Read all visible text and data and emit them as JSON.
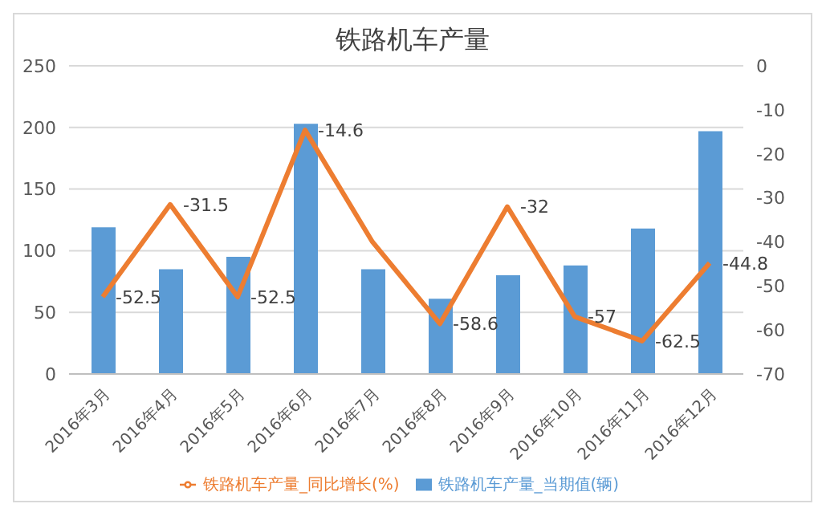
{
  "chart_data": {
    "type": "bar",
    "title": "铁路机车产量",
    "categories": [
      "2016年3月",
      "2016年4月",
      "2016年5月",
      "2016年6月",
      "2016年7月",
      "2016年8月",
      "2016年9月",
      "2016年10月",
      "2016年11月",
      "2016年12月"
    ],
    "series": [
      {
        "name": "铁路机车产量_当期值(辆)",
        "color": "#5b9bd5",
        "values": [
          119,
          85,
          95,
          203,
          85,
          61,
          80,
          88,
          118,
          197
        ]
      },
      {
        "name": "铁路机车产量_同比增长(%)",
        "type": "line",
        "axis": "y2",
        "color": "#ed7d31",
        "values": [
          -52.5,
          -31.5,
          -52.5,
          -14.6,
          -40,
          -58.6,
          -32,
          -57,
          -62.5,
          -44.8
        ],
        "value_labels": [
          "-52.5",
          "-31.5",
          "-52.5",
          "-14.6",
          null,
          "-58.6",
          "-32",
          "-57",
          "-62.5",
          "-44.8"
        ]
      }
    ],
    "ylim": [
      0,
      250
    ],
    "yticks": [
      0,
      50,
      100,
      150,
      200,
      250
    ],
    "y2lim": [
      -70,
      0
    ],
    "y2ticks": [
      -70,
      -60,
      -50,
      -40,
      -30,
      -20,
      -10,
      0
    ],
    "grid": "y",
    "legend": "bottom",
    "marker": "none"
  }
}
